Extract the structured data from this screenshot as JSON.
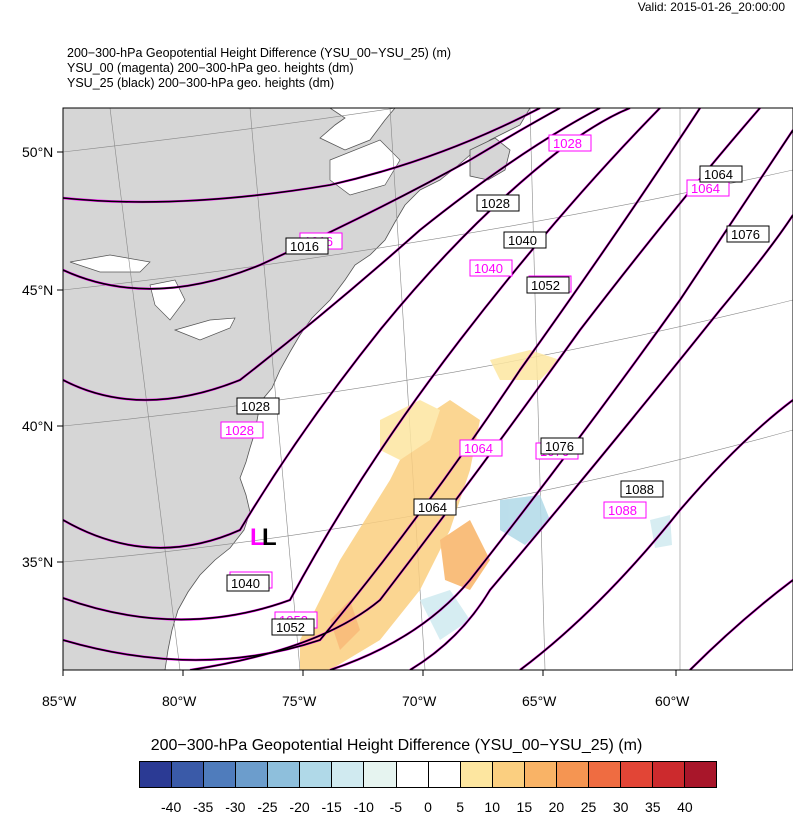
{
  "valid_time": "Valid: 2015-01-26_20:00:00",
  "header": [
    "200−300-hPa Geopotential Height Difference (YSU_00−YSU_25)   (m)",
    "YSU_00 (magenta) 200−300-hPa geo. heights   (dm)",
    "YSU_25 (black) 200−300-hPa geo. heights   (dm)"
  ],
  "lat_labels": [
    "50°N",
    "45°N",
    "40°N",
    "35°N"
  ],
  "lon_labels": [
    "85°W",
    "80°W",
    "75°W",
    "70°W",
    "65°W",
    "60°W"
  ],
  "contour_labels_black": [
    "1016",
    "1028",
    "1028",
    "1040",
    "1040",
    "1052",
    "1052",
    "1064",
    "1064",
    "1076",
    "1076",
    "1088"
  ],
  "contour_labels_magenta": [
    "1016",
    "1028",
    "1028",
    "1040",
    "1040",
    "1052",
    "1052",
    "1064",
    "1064",
    "1076",
    "1088"
  ],
  "low_marker": "L",
  "colorbar": {
    "title": "200−300-hPa Geopotential Height Difference (YSU_00−YSU_25)  (m)",
    "ticks": [
      "-40",
      "-35",
      "-30",
      "-25",
      "-20",
      "-15",
      "-10",
      "-5",
      "0",
      "5",
      "10",
      "15",
      "20",
      "25",
      "30",
      "35",
      "40"
    ],
    "colors": [
      "#2b3a94",
      "#3a5aa8",
      "#4f7cbc",
      "#6c9dcc",
      "#8ebfdc",
      "#b0d9e8",
      "#d0eaf0",
      "#e6f4f0",
      "#ffffff",
      "#ffffff",
      "#fde6a0",
      "#fbcf80",
      "#f9b366",
      "#f59552",
      "#ef6c41",
      "#e24536",
      "#cc2a2d",
      "#a8162a"
    ]
  }
}
